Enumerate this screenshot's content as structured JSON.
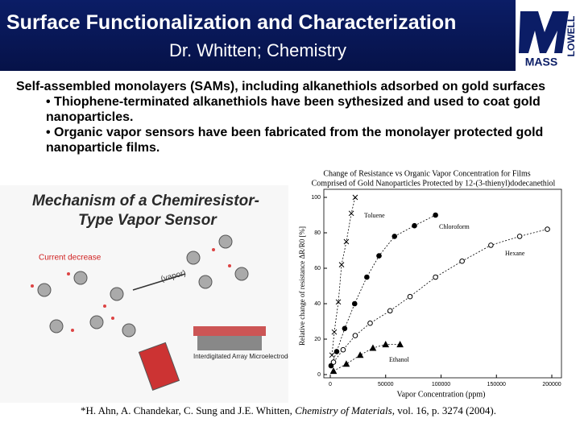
{
  "header": {
    "title": "Surface Functionalization and Characterization",
    "subtitle": "Dr. Whitten;  Chemistry"
  },
  "logo": {
    "word": "MASS",
    "side": "LOWELL"
  },
  "body": {
    "intro": "Self-assembled monolayers (SAMs), including alkanethiols adsorbed on gold surfaces",
    "bullets": [
      "• Thiophene-terminated alkanethiols have been sythesized and used to coat gold nanoparticles.",
      "• Organic vapor sensors have been fabricated from the monolayer protected gold nanoparticle films."
    ]
  },
  "figure": {
    "title_lines": [
      "Mechanism of a Chemiresistor-",
      "Type Vapor Sensor"
    ],
    "current": "Current decrease",
    "vapor": "(vapor)",
    "electrode": "Interdigitated Array Microelectrode"
  },
  "chart_data": {
    "type": "scatter",
    "title": "Change of Resistance vs Organic Vapor Concentration for Films",
    "subtitle": "Comprised of Gold Nanoparticles Protected by 12-(3-thienyl)dodecanethiol",
    "x_label": "Vapor Concentration (ppm)",
    "y_label": "Relative change of resistance ΔR/R0 [%]",
    "xlim": [
      0,
      200000
    ],
    "ylim": [
      0,
      100
    ],
    "xticks": [
      0,
      50000,
      100000,
      150000,
      200000
    ],
    "yticks": [
      0,
      20,
      40,
      60,
      80,
      100
    ],
    "series": [
      {
        "name": "Toluene",
        "color": "#000000",
        "marker": "x",
        "x": [
          1500,
          3600,
          7300,
          10200,
          14500,
          19000,
          22500
        ],
        "values": [
          11,
          24,
          41,
          62,
          75,
          91,
          100
        ]
      },
      {
        "name": "Chloroform",
        "color": "#000000",
        "marker": "filled-circle",
        "x": [
          700,
          5800,
          13000,
          22000,
          33000,
          44000,
          58000,
          76000,
          95000
        ],
        "values": [
          5,
          13,
          26,
          40,
          55,
          67,
          78,
          84,
          90
        ]
      },
      {
        "name": "Hexane",
        "color": "#000000",
        "marker": "open-circle",
        "x": [
          2900,
          11600,
          22500,
          36000,
          54000,
          72000,
          95000,
          119000,
          145000,
          171000,
          196000
        ],
        "values": [
          7,
          14,
          22,
          29,
          36,
          44,
          55,
          64,
          73,
          78,
          82
        ]
      },
      {
        "name": "Ethanol",
        "color": "#000000",
        "marker": "triangle",
        "x": [
          2900,
          14500,
          27000,
          38500,
          50000,
          63000
        ],
        "values": [
          2,
          6,
          11,
          15,
          17,
          17
        ]
      }
    ]
  },
  "citation": {
    "before": "*H. Ahn, A. Chandekar, C. Sung and J.E. Whitten, ",
    "journal": "Chemistry of Materials",
    "after": ", vol. 16, p. 3274 (2004)."
  }
}
